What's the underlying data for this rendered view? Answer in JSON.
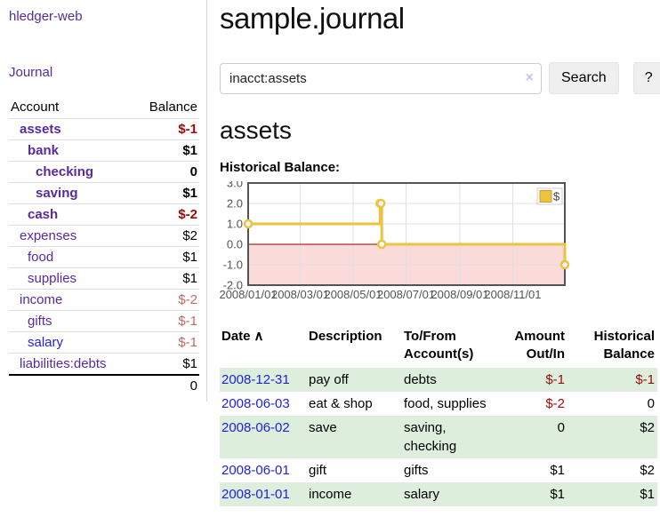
{
  "app": {
    "brand": "hledger-web",
    "nav": {
      "journal": "Journal"
    }
  },
  "sidebar": {
    "accounts_header": {
      "account": "Account",
      "balance": "Balance"
    },
    "accounts": [
      {
        "name": "assets",
        "balance": "$-1",
        "level": 1,
        "bold": true,
        "balance_tone": "neg-strong"
      },
      {
        "name": "bank",
        "balance": "$1",
        "level": 2,
        "bold": true,
        "balance_tone": ""
      },
      {
        "name": "checking",
        "balance": "0",
        "level": 3,
        "bold": true,
        "balance_tone": ""
      },
      {
        "name": "saving",
        "balance": "$1",
        "level": 3,
        "bold": true,
        "balance_tone": ""
      },
      {
        "name": "cash",
        "balance": "$-2",
        "level": 2,
        "bold": true,
        "balance_tone": "neg-strong"
      },
      {
        "name": "expenses",
        "balance": "$2",
        "level": 1,
        "bold": false,
        "balance_tone": ""
      },
      {
        "name": "food",
        "balance": "$1",
        "level": 2,
        "bold": false,
        "balance_tone": ""
      },
      {
        "name": "supplies",
        "balance": "$1",
        "level": 2,
        "bold": false,
        "balance_tone": ""
      },
      {
        "name": "income",
        "balance": "$-2",
        "level": 1,
        "bold": false,
        "balance_tone": "neg-soft"
      },
      {
        "name": "gifts",
        "balance": "$-1",
        "level": 2,
        "bold": false,
        "balance_tone": "neg-soft"
      },
      {
        "name": "salary",
        "balance": "$-1",
        "level": 2,
        "bold": false,
        "balance_tone": "neg-soft",
        "link_tone": "blue"
      },
      {
        "name": "liabilities:debts",
        "balance": "$1",
        "level": 1,
        "bold": false,
        "balance_tone": ""
      }
    ],
    "total": "0"
  },
  "header": {
    "title": "sample.journal"
  },
  "search": {
    "value": "inacct:assets",
    "clear_icon": "×",
    "button": "Search",
    "help_button": "?"
  },
  "account_page": {
    "title": "assets",
    "chart_label": "Historical Balance:"
  },
  "chart_data": {
    "type": "line",
    "step": true,
    "title": "Historical Balance",
    "series": [
      {
        "name": "$",
        "color": "#edc240",
        "points": [
          [
            "2008-01-01",
            1
          ],
          [
            "2008-06-01",
            2
          ],
          [
            "2008-06-02",
            2
          ],
          [
            "2008-06-03",
            0
          ],
          [
            "2008-12-31",
            -1
          ]
        ]
      }
    ],
    "xlim": [
      "2008-01-01",
      "2008-12-31"
    ],
    "ylim": [
      -2,
      3
    ],
    "yticks": [
      "3.0",
      "2.0",
      "1.0",
      "0.0",
      "-1.0",
      "-2.0"
    ],
    "xticks": [
      "2008/01/01",
      "2008/03/01",
      "2008/05/01",
      "2008/07/01",
      "2008/09/01",
      "2008/11/01"
    ],
    "legend": "$",
    "legend_position": "top-right",
    "grid": true
  },
  "register": {
    "columns": {
      "date": "Date",
      "description": "Description",
      "accounts": "To/From Account(s)",
      "amount": "Amount Out/In",
      "balance": "Historical Balance"
    },
    "sort_icon": "∧",
    "rows": [
      {
        "date": "2008-12-31",
        "description": "pay off",
        "accounts": "debts",
        "amount": "$-1",
        "balance": "$-1",
        "amount_neg": true,
        "balance_neg": true
      },
      {
        "date": "2008-06-03",
        "description": "eat & shop",
        "accounts": "food, supplies",
        "amount": "$-2",
        "balance": "0",
        "amount_neg": true,
        "balance_neg": false
      },
      {
        "date": "2008-06-02",
        "description": "save",
        "accounts": "saving, checking",
        "amount": "0",
        "balance": "$2",
        "amount_neg": false,
        "balance_neg": false
      },
      {
        "date": "2008-06-01",
        "description": "gift",
        "accounts": "gifts",
        "amount": "$1",
        "balance": "$2",
        "amount_neg": false,
        "balance_neg": false
      },
      {
        "date": "2008-01-01",
        "description": "income",
        "accounts": "salary",
        "amount": "$1",
        "balance": "$1",
        "amount_neg": false,
        "balance_neg": false
      }
    ]
  },
  "colors": {
    "link_purple": "#582a9e",
    "link_blue": "#2222dd",
    "negative_strong": "#9c0a0a",
    "negative_soft": "#c06a6a",
    "row_stripe_green": "#ddeedd",
    "chart_series": "#edc240",
    "chart_negative_fill": "#fbdada",
    "chart_zero_line": "#8b0000",
    "chart_grid": "#e0e0e0",
    "chart_border": "#545454"
  }
}
